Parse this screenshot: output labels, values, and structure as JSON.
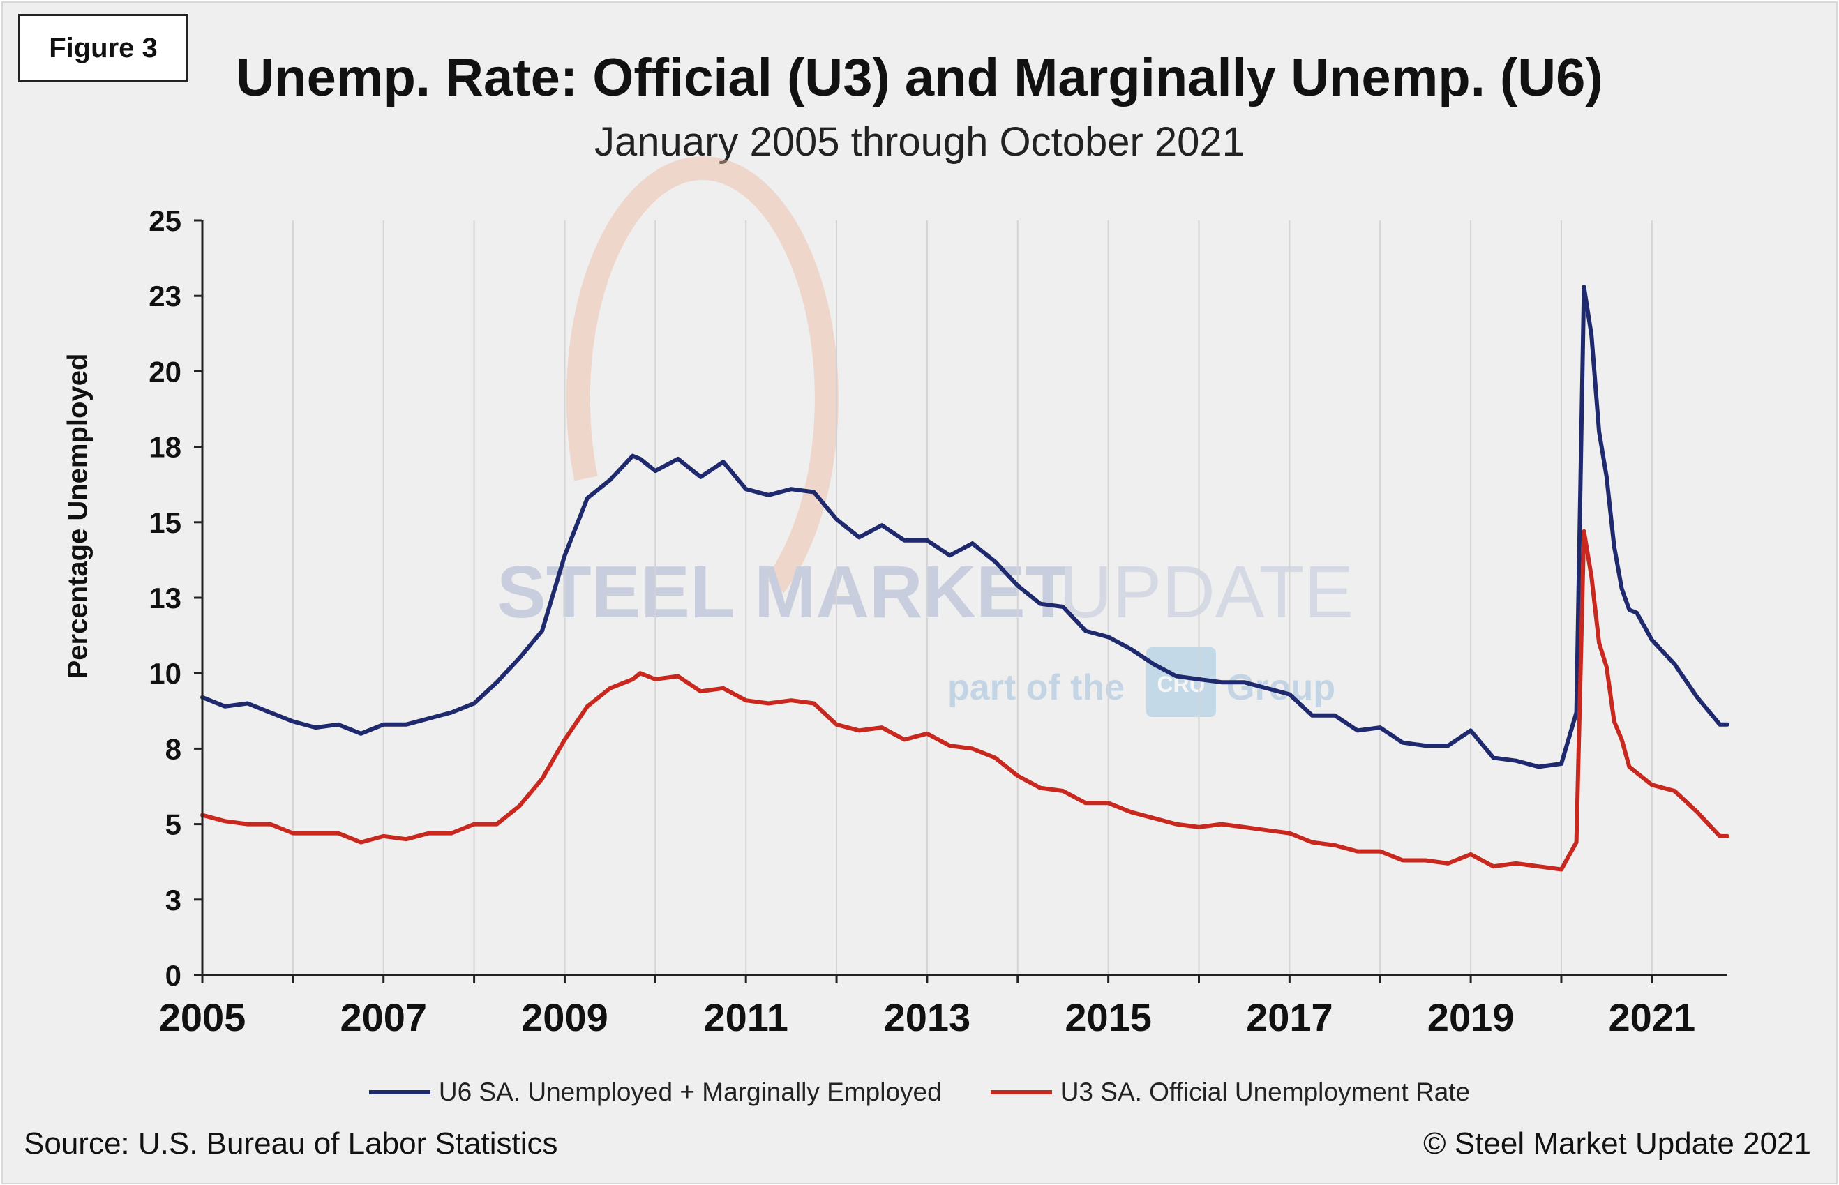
{
  "figure_label": "Figure 3",
  "watermark": {
    "text_main": "STEEL MARKET",
    "text_light": "UPDATE",
    "sub_a": "part of the",
    "sub_b": "Group",
    "badge": "CRU"
  },
  "colors": {
    "u6": "#1f2a6e",
    "u3": "#c8281e",
    "grid": "#d4d4d4",
    "axis": "#222222",
    "background": "#efefef"
  },
  "footer": {
    "source": "Source: U.S. Bureau  of Labor Statistics",
    "copyright": "© Steel Market Update 2021"
  },
  "chart_data": {
    "type": "line",
    "title": "Unemp. Rate: Official (U3) and Marginally Unemp. (U6)",
    "subtitle": "January 2005 through October 2021",
    "ylabel": "Percentage Unemployed",
    "xlabel": "",
    "ylim": [
      0,
      25
    ],
    "xlim": [
      2005.0,
      2021.833
    ],
    "yticks": [
      0,
      2.5,
      5,
      7.5,
      10,
      12.5,
      15,
      17.5,
      20,
      22.5,
      25
    ],
    "ytick_labels": [
      "0",
      "3",
      "5",
      "8",
      "10",
      "13",
      "15",
      "18",
      "20",
      "23",
      "25"
    ],
    "xticks": [
      2005,
      2007,
      2009,
      2011,
      2013,
      2015,
      2017,
      2019,
      2021
    ],
    "xtick_labels": [
      "2005",
      "2007",
      "2009",
      "2011",
      "2013",
      "2015",
      "2017",
      "2019",
      "2021"
    ],
    "grid": "vertical",
    "legend_position": "bottom",
    "series": [
      {
        "name": "U6 SA. Unemployed + Marginally Employed",
        "color": "#1f2a6e",
        "x": [
          2005.0,
          2005.25,
          2005.5,
          2005.75,
          2006.0,
          2006.25,
          2006.5,
          2006.75,
          2007.0,
          2007.25,
          2007.5,
          2007.75,
          2008.0,
          2008.25,
          2008.5,
          2008.75,
          2009.0,
          2009.25,
          2009.5,
          2009.75,
          2009.833,
          2010.0,
          2010.25,
          2010.5,
          2010.75,
          2011.0,
          2011.25,
          2011.5,
          2011.75,
          2012.0,
          2012.25,
          2012.5,
          2012.75,
          2013.0,
          2013.25,
          2013.5,
          2013.75,
          2014.0,
          2014.25,
          2014.5,
          2014.75,
          2015.0,
          2015.25,
          2015.5,
          2015.75,
          2016.0,
          2016.25,
          2016.5,
          2016.75,
          2017.0,
          2017.25,
          2017.5,
          2017.75,
          2018.0,
          2018.25,
          2018.5,
          2018.75,
          2019.0,
          2019.25,
          2019.5,
          2019.75,
          2020.0,
          2020.167,
          2020.25,
          2020.333,
          2020.417,
          2020.5,
          2020.583,
          2020.667,
          2020.75,
          2020.833,
          2021.0,
          2021.25,
          2021.5,
          2021.75,
          2021.833
        ],
        "values": [
          9.2,
          8.9,
          9.0,
          8.7,
          8.4,
          8.2,
          8.3,
          8.0,
          8.3,
          8.3,
          8.5,
          8.7,
          9.0,
          9.7,
          10.5,
          11.4,
          13.9,
          15.8,
          16.4,
          17.2,
          17.1,
          16.7,
          17.1,
          16.5,
          17.0,
          16.1,
          15.9,
          16.1,
          16.0,
          15.1,
          14.5,
          14.9,
          14.4,
          14.4,
          13.9,
          14.3,
          13.7,
          12.9,
          12.3,
          12.2,
          11.4,
          11.2,
          10.8,
          10.3,
          9.9,
          9.8,
          9.7,
          9.7,
          9.5,
          9.3,
          8.6,
          8.6,
          8.1,
          8.2,
          7.7,
          7.6,
          7.6,
          8.1,
          7.2,
          7.1,
          6.9,
          7.0,
          8.7,
          22.8,
          21.2,
          18.0,
          16.5,
          14.2,
          12.8,
          12.1,
          12.0,
          11.1,
          10.3,
          9.2,
          8.3,
          8.3
        ]
      },
      {
        "name": "U3 SA. Official Unemployment Rate",
        "color": "#c8281e",
        "x": [
          2005.0,
          2005.25,
          2005.5,
          2005.75,
          2006.0,
          2006.25,
          2006.5,
          2006.75,
          2007.0,
          2007.25,
          2007.5,
          2007.75,
          2008.0,
          2008.25,
          2008.5,
          2008.75,
          2009.0,
          2009.25,
          2009.5,
          2009.75,
          2009.833,
          2010.0,
          2010.25,
          2010.5,
          2010.75,
          2011.0,
          2011.25,
          2011.5,
          2011.75,
          2012.0,
          2012.25,
          2012.5,
          2012.75,
          2013.0,
          2013.25,
          2013.5,
          2013.75,
          2014.0,
          2014.25,
          2014.5,
          2014.75,
          2015.0,
          2015.25,
          2015.5,
          2015.75,
          2016.0,
          2016.25,
          2016.5,
          2016.75,
          2017.0,
          2017.25,
          2017.5,
          2017.75,
          2018.0,
          2018.25,
          2018.5,
          2018.75,
          2019.0,
          2019.25,
          2019.5,
          2019.75,
          2020.0,
          2020.167,
          2020.25,
          2020.333,
          2020.417,
          2020.5,
          2020.583,
          2020.667,
          2020.75,
          2020.833,
          2021.0,
          2021.25,
          2021.5,
          2021.75,
          2021.833
        ],
        "values": [
          5.3,
          5.1,
          5.0,
          5.0,
          4.7,
          4.7,
          4.7,
          4.4,
          4.6,
          4.5,
          4.7,
          4.7,
          5.0,
          5.0,
          5.6,
          6.5,
          7.8,
          8.9,
          9.5,
          9.8,
          10.0,
          9.8,
          9.9,
          9.4,
          9.5,
          9.1,
          9.0,
          9.1,
          9.0,
          8.3,
          8.1,
          8.2,
          7.8,
          8.0,
          7.6,
          7.5,
          7.2,
          6.6,
          6.2,
          6.1,
          5.7,
          5.7,
          5.4,
          5.2,
          5.0,
          4.9,
          5.0,
          4.9,
          4.8,
          4.7,
          4.4,
          4.3,
          4.1,
          4.1,
          3.8,
          3.8,
          3.7,
          4.0,
          3.6,
          3.7,
          3.6,
          3.5,
          4.4,
          14.7,
          13.2,
          11.0,
          10.2,
          8.4,
          7.8,
          6.9,
          6.7,
          6.3,
          6.1,
          5.4,
          4.6,
          4.6
        ]
      }
    ]
  }
}
